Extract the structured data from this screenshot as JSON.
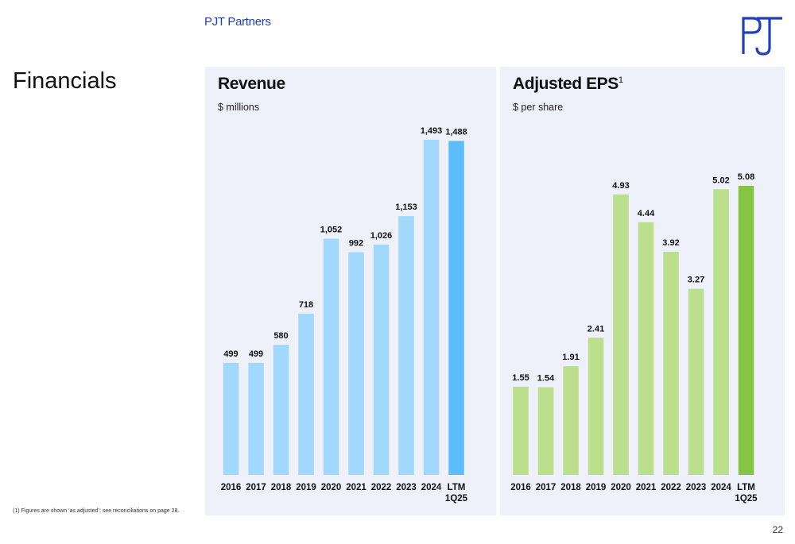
{
  "header": {
    "brand": "PJT Partners",
    "logo_icon": "pjt-logo-icon",
    "brand_color": "#1f3fbf"
  },
  "page": {
    "title": "Financials",
    "footnote": "(1)    Figures are shown ‘as adjusted’; see reconciliations on page 28.",
    "number": "22"
  },
  "colors": {
    "panel_bg": "#eef0fa",
    "revenue_bar": "#a3d8fd",
    "revenue_highlight": "#5dbcfb",
    "eps_bar": "#bcdf8e",
    "eps_highlight": "#86c443"
  },
  "chart_data": [
    {
      "type": "bar",
      "title": "Revenue",
      "title_sup": "",
      "subtitle": "$ millions",
      "categories": [
        "2016",
        "2017",
        "2018",
        "2019",
        "2020",
        "2021",
        "2022",
        "2023",
        "2024",
        "LTM 1Q25"
      ],
      "category_lines": [
        [
          "2016"
        ],
        [
          "2017"
        ],
        [
          "2018"
        ],
        [
          "2019"
        ],
        [
          "2020"
        ],
        [
          "2021"
        ],
        [
          "2022"
        ],
        [
          "2023"
        ],
        [
          "2024"
        ],
        [
          "LTM",
          "1Q25"
        ]
      ],
      "values": [
        499,
        499,
        580,
        718,
        1052,
        992,
        1026,
        1153,
        1493,
        1488
      ],
      "value_labels": [
        "499",
        "499",
        "580",
        "718",
        "1,052",
        "992",
        "1,026",
        "1,153",
        "1,493",
        "1,488"
      ],
      "highlight_index": 9,
      "ylim": [
        0,
        1500
      ],
      "grid": false,
      "legend": "none"
    },
    {
      "type": "bar",
      "title": "Adjusted EPS",
      "title_sup": "1",
      "subtitle": "$ per share",
      "categories": [
        "2016",
        "2017",
        "2018",
        "2019",
        "2020",
        "2021",
        "2022",
        "2023",
        "2024",
        "LTM 1Q25"
      ],
      "category_lines": [
        [
          "2016"
        ],
        [
          "2017"
        ],
        [
          "2018"
        ],
        [
          "2019"
        ],
        [
          "2020"
        ],
        [
          "2021"
        ],
        [
          "2022"
        ],
        [
          "2023"
        ],
        [
          "2024"
        ],
        [
          "LTM",
          "1Q25"
        ]
      ],
      "values": [
        1.55,
        1.54,
        1.91,
        2.41,
        4.93,
        4.44,
        3.92,
        3.27,
        5.02,
        5.08
      ],
      "value_labels": [
        "1.55",
        "1.54",
        "1.91",
        "2.41",
        "4.93",
        "4.44",
        "3.92",
        "3.27",
        "5.02",
        "5.08"
      ],
      "highlight_index": 9,
      "ylim": [
        0,
        5.15
      ],
      "grid": false,
      "legend": "none"
    }
  ]
}
